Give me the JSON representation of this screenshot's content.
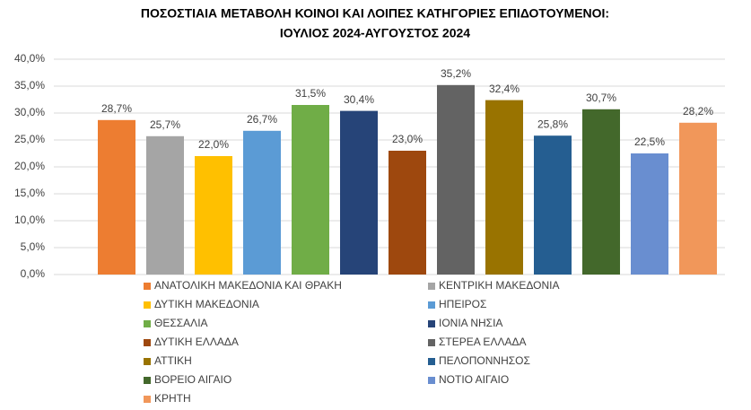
{
  "chart_data": {
    "type": "bar",
    "title": [
      "ΠΟΣΟΣΤΙΑΙΑ ΜΕΤΑΒΟΛΗ ΚΟΙΝΟΙ ΚΑΙ ΛΟΙΠΕΣ ΚΑΤΗΓΟΡΙΕΣ ΕΠΙΔΟΤΟΥΜΕΝΟΙ:",
      "ΙΟΥΛΙΟΣ 2024-ΑΥΓΟΥΣΤΟΣ 2024"
    ],
    "categories": [
      "ΑΝΑΤΟΛΙΚΗ ΜΑΚΕΔΟΝΙΑ ΚΑΙ ΘΡΑΚΗ",
      "ΚΕΝΤΡΙΚΗ ΜΑΚΕΔΟΝΙΑ",
      "ΔΥΤΙΚΗ ΜΑΚΕΔΟΝΙΑ",
      "ΗΠΕΙΡΟΣ",
      "ΘΕΣΣΑΛΙΑ",
      "ΙΟΝΙΑ ΝΗΣΙΑ",
      "ΔΥΤΙΚΗ ΕΛΛΑΔΑ",
      "ΣΤΕΡΕΑ ΕΛΛΑΔΑ",
      "ΑΤΤΙΚΗ",
      "ΠΕΛΟΠΟΝΝΗΣΟΣ",
      "ΒΟΡΕΙΟ ΑΙΓΑΙΟ",
      "ΝΟΤΙΟ ΑΙΓΑΙΟ",
      "ΚΡΗΤΗ"
    ],
    "values": [
      28.7,
      25.7,
      22.0,
      26.7,
      31.5,
      30.4,
      23.0,
      35.2,
      32.4,
      25.8,
      30.7,
      22.5,
      28.2
    ],
    "value_labels": [
      "28,7%",
      "25,7%",
      "22,0%",
      "26,7%",
      "31,5%",
      "30,4%",
      "23,0%",
      "35,2%",
      "32,4%",
      "25,8%",
      "30,7%",
      "22,5%",
      "28,2%"
    ],
    "colors": [
      "#ED7D31",
      "#A5A5A5",
      "#FFC000",
      "#5B9BD5",
      "#70AD47",
      "#264478",
      "#9E480E",
      "#636363",
      "#997300",
      "#255E91",
      "#43682B",
      "#698ED0",
      "#F1975A"
    ],
    "ylim": [
      0,
      40
    ],
    "yticks": [
      {
        "value": 0,
        "label": "0,0%"
      },
      {
        "value": 5,
        "label": "5,0%"
      },
      {
        "value": 10,
        "label": "10,0%"
      },
      {
        "value": 15,
        "label": "15,0%"
      },
      {
        "value": 20,
        "label": "20,0%"
      },
      {
        "value": 25,
        "label": "25,0%"
      },
      {
        "value": 30,
        "label": "30,0%"
      },
      {
        "value": 35,
        "label": "35,0%"
      },
      {
        "value": 40,
        "label": "40,0%"
      }
    ],
    "grid": true
  }
}
